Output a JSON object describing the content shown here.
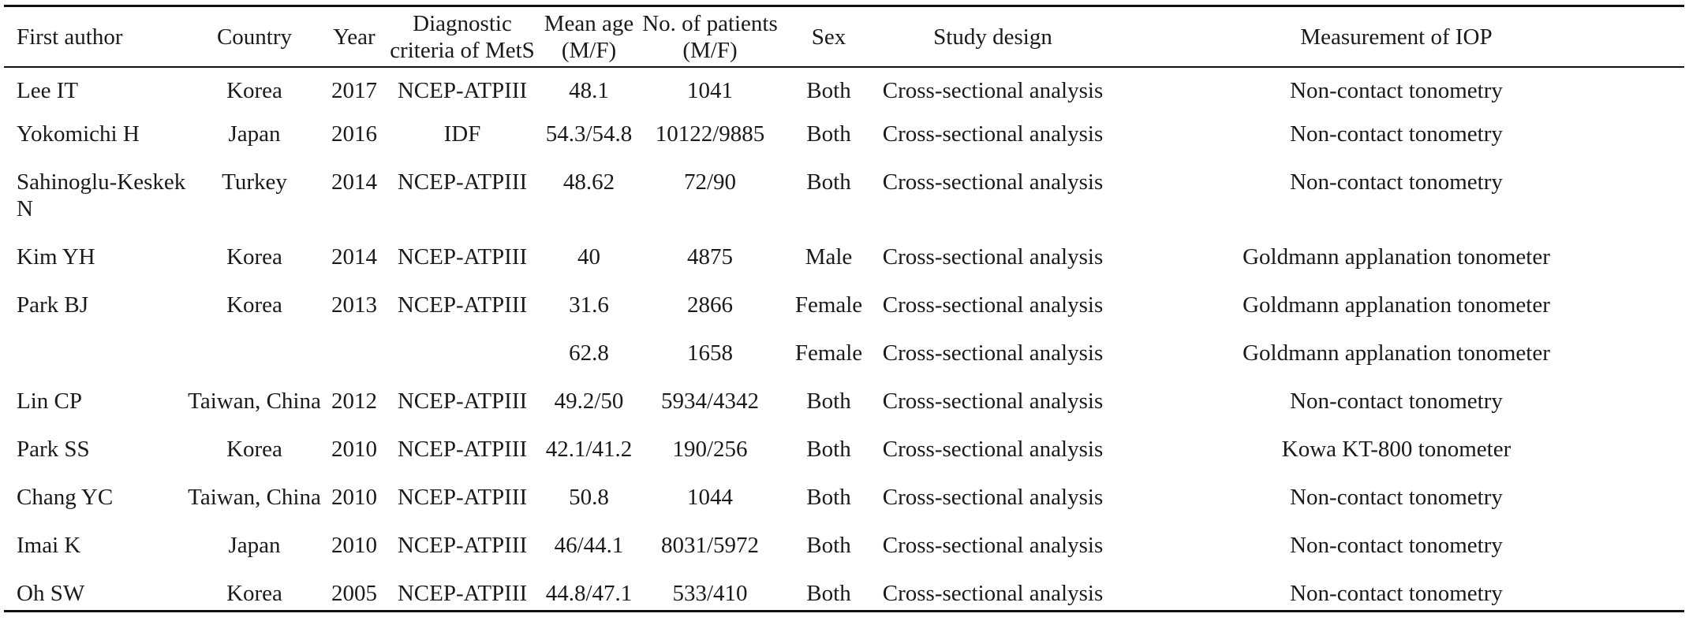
{
  "headers": [
    "First author",
    "Country",
    "Year",
    "Diagnostic criteria of MetS",
    "Mean age (M/F)",
    "No. of patients (M/F)",
    "Sex",
    "Study design",
    "Measurement of IOP"
  ],
  "rows": [
    {
      "author": "Lee IT",
      "country": "Korea",
      "year": "2017",
      "criteria": "NCEP-ATPIII",
      "age": "48.1",
      "patients": "1041",
      "sex": "Both",
      "design": "Cross-sectional analysis",
      "iop": "Non-contact tonometry"
    },
    {
      "author": "Yokomichi H",
      "country": "Japan",
      "year": "2016",
      "criteria": "IDF",
      "age": "54.3/54.8",
      "patients": "10122/9885",
      "sex": "Both",
      "design": "Cross-sectional analysis",
      "iop": "Non-contact tonometry"
    },
    {
      "author": "Sahinoglu-Keskek N",
      "country": "Turkey",
      "year": "2014",
      "criteria": "NCEP-ATPIII",
      "age": "48.62",
      "patients": "72/90",
      "sex": "Both",
      "design": "Cross-sectional analysis",
      "iop": "Non-contact tonometry"
    },
    {
      "author": "Kim YH",
      "country": "Korea",
      "year": "2014",
      "criteria": "NCEP-ATPIII",
      "age": "40",
      "patients": "4875",
      "sex": "Male",
      "design": "Cross-sectional analysis",
      "iop": "Goldmann applanation tonometer"
    },
    {
      "author": "Park BJ",
      "country": "Korea",
      "year": "2013",
      "criteria": "NCEP-ATPIII",
      "age": "31.6",
      "patients": "2866",
      "sex": "Female",
      "design": "Cross-sectional analysis",
      "iop": "Goldmann applanation tonometer"
    },
    {
      "author": "",
      "country": "",
      "year": "",
      "criteria": "",
      "age": "62.8",
      "patients": "1658",
      "sex": "Female",
      "design": "Cross-sectional analysis",
      "iop": "Goldmann applanation tonometer"
    },
    {
      "author": "Lin CP",
      "country": "Taiwan, China",
      "year": "2012",
      "criteria": "NCEP-ATPIII",
      "age": "49.2/50",
      "patients": "5934/4342",
      "sex": "Both",
      "design": "Cross-sectional analysis",
      "iop": "Non-contact tonometry"
    },
    {
      "author": "Park SS",
      "country": "Korea",
      "year": "2010",
      "criteria": "NCEP-ATPIII",
      "age": "42.1/41.2",
      "patients": "190/256",
      "sex": "Both",
      "design": "Cross-sectional analysis",
      "iop": "Kowa KT-800 tonometer"
    },
    {
      "author": "Chang YC",
      "country": "Taiwan, China",
      "year": "2010",
      "criteria": "NCEP-ATPIII",
      "age": "50.8",
      "patients": "1044",
      "sex": "Both",
      "design": "Cross-sectional analysis",
      "iop": "Non-contact tonometry"
    },
    {
      "author": "Imai K",
      "country": "Japan",
      "year": "2010",
      "criteria": "NCEP-ATPIII",
      "age": "46/44.1",
      "patients": "8031/5972",
      "sex": "Both",
      "design": "Cross-sectional analysis",
      "iop": "Non-contact tonometry"
    },
    {
      "author": "Oh SW",
      "country": "Korea",
      "year": "2005",
      "criteria": "NCEP-ATPIII",
      "age": "44.8/47.1",
      "patients": "533/410",
      "sex": "Both",
      "design": "Cross-sectional analysis",
      "iop": "Non-contact tonometry"
    }
  ]
}
